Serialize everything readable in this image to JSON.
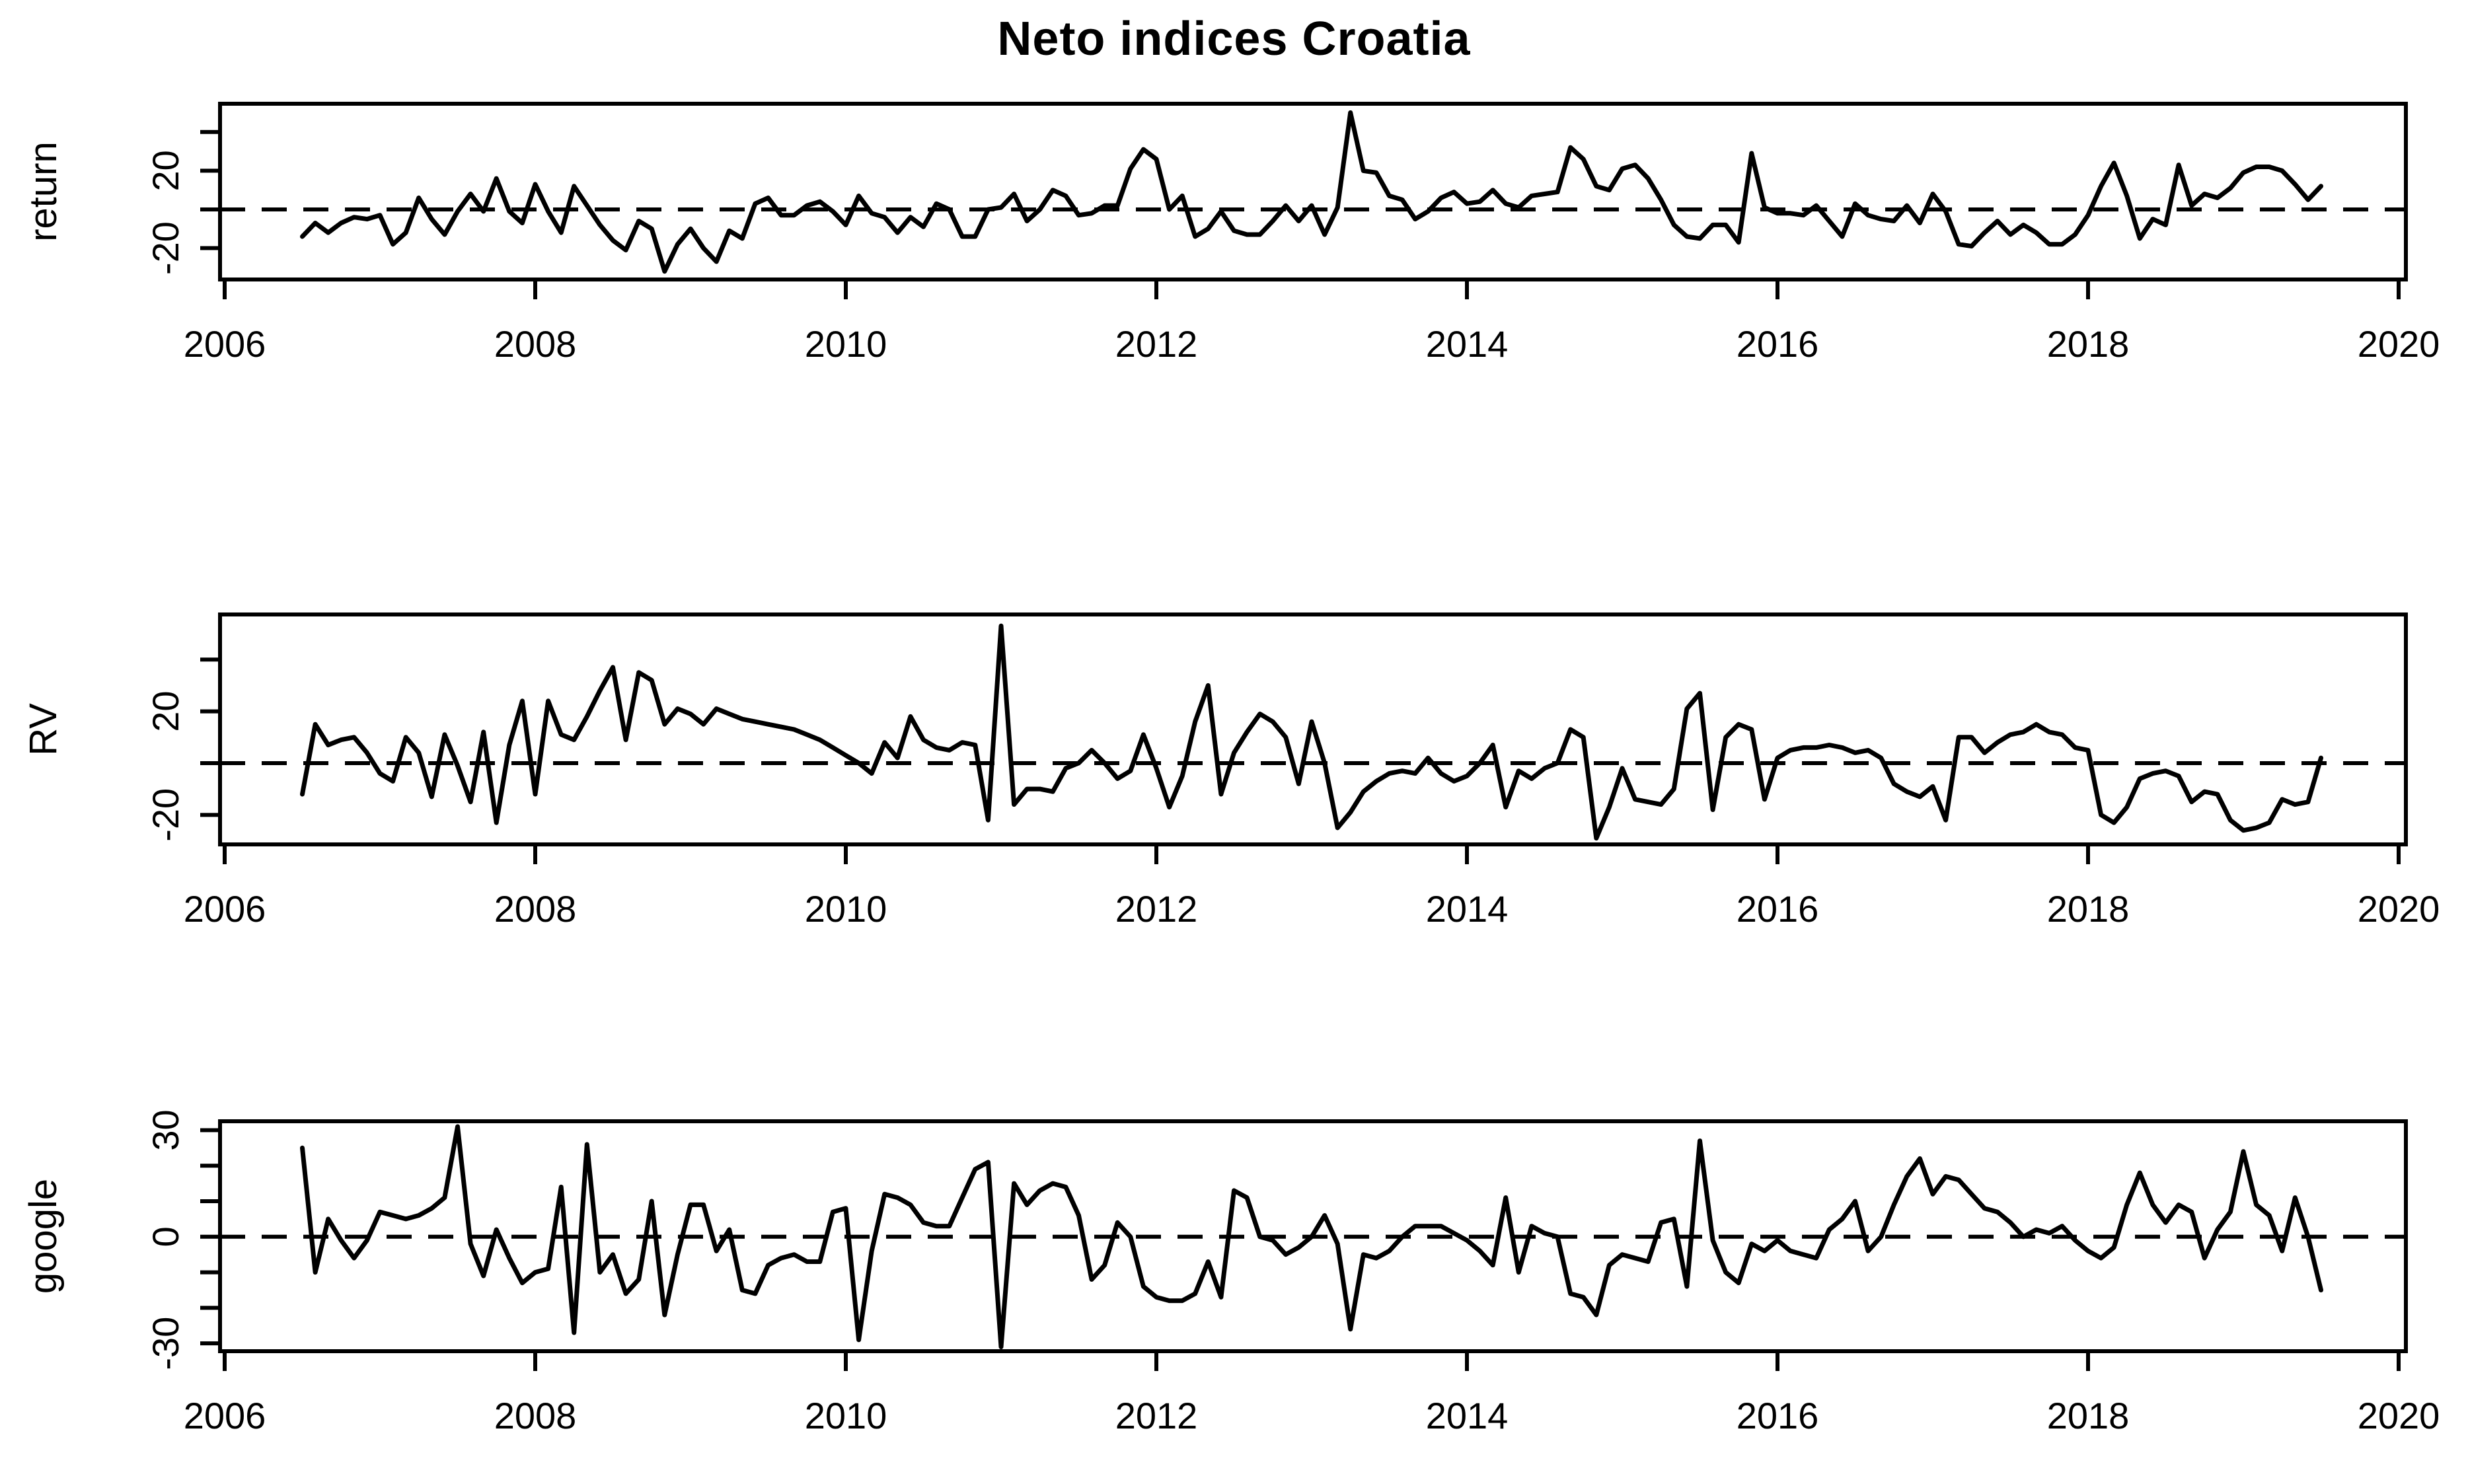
{
  "title": "Neto indices Croatia",
  "chart_data": {
    "type": "line",
    "title": "Neto indices Croatia",
    "x": {
      "start": 2006.5,
      "step_years": 0.0833333,
      "n_points": 157,
      "frequency": "monthly",
      "first_point": "Jul 2006",
      "last_point": "Jul 2019"
    },
    "xticks": [
      2006,
      2008,
      2010,
      2012,
      2014,
      2016,
      2018,
      2020
    ],
    "xtick_labels": [
      "2006",
      "2008",
      "2010",
      "2012",
      "2014",
      "2016",
      "2018",
      "2020"
    ],
    "grid": "off",
    "legend": "none",
    "line_color": "#000000",
    "background": "#ffffff",
    "zero_reference_line": {
      "value": 0,
      "style": "dashed",
      "color": "#000000"
    },
    "panels": [
      {
        "id": "return",
        "ylabel": "return",
        "yticks": [
          40,
          20,
          0,
          -20
        ],
        "ytick_labels": [
          "",
          "20",
          "",
          "-20"
        ],
        "ylim": [
          -36.2,
          54.6
        ],
        "values": [
          -14,
          -7,
          -12,
          -7,
          -4,
          -5,
          -3,
          -18,
          -12,
          6,
          -5,
          -13,
          -1,
          8,
          -1,
          16,
          -1,
          -7,
          13,
          -1,
          -12,
          12,
          2,
          -8,
          -16,
          -21,
          -6,
          -10,
          -32,
          -18,
          -10,
          -20,
          -27,
          -11,
          -15,
          3,
          6,
          -3,
          -3,
          2,
          4,
          -1,
          -8,
          7,
          -2,
          -4,
          -12,
          -4,
          -9,
          3,
          0,
          -14,
          -14,
          0,
          1,
          8,
          -6,
          0,
          10,
          7,
          -3,
          -2,
          2,
          2,
          21,
          31,
          26,
          0,
          7,
          -14,
          -10,
          -1,
          -11,
          -13,
          -13,
          -6,
          2,
          -6,
          2,
          -13,
          1,
          50,
          20,
          19,
          7,
          5,
          -5,
          -1,
          6,
          9,
          3,
          4,
          10,
          3,
          1,
          7,
          8,
          9,
          32,
          26,
          12,
          10,
          21,
          23,
          16,
          5,
          -8,
          -14,
          -15,
          -8,
          -8,
          -17,
          29,
          1,
          -2,
          -2,
          -3,
          2,
          -6,
          -14,
          3,
          -3,
          -5,
          -6,
          2,
          -7,
          8,
          -1,
          -18,
          -19,
          -12,
          -6,
          -13,
          -8,
          -12,
          -18,
          -18,
          -13,
          -3,
          12,
          24,
          7,
          -15,
          -5,
          -8,
          23,
          2,
          8,
          6,
          11,
          19,
          22,
          22,
          20,
          13,
          5,
          12
        ]
      },
      {
        "id": "rv",
        "ylabel": "RV",
        "yticks": [
          40,
          20,
          0,
          -20
        ],
        "ytick_labels": [
          "",
          "20",
          "",
          "-20"
        ],
        "ylim": [
          -31.4,
          57.4
        ],
        "values": [
          -12,
          15,
          7,
          9,
          10,
          4,
          -4,
          -7,
          10,
          4,
          -13,
          11,
          -1,
          -15,
          12,
          -23,
          7,
          24,
          -12,
          24,
          11,
          9,
          18,
          28,
          37,
          9,
          35,
          32,
          15,
          21,
          19,
          15,
          21,
          19,
          17,
          16,
          15,
          14,
          13,
          11,
          9,
          6,
          3,
          0,
          -4,
          8,
          2,
          18,
          9,
          6,
          5,
          8,
          7,
          -22,
          53,
          -16,
          -10,
          -10,
          -11,
          -2,
          0,
          5,
          0,
          -6,
          -3,
          11,
          -2,
          -17,
          -5,
          16,
          30,
          -12,
          4,
          12,
          19,
          16,
          10,
          -8,
          16,
          0,
          -25,
          -19,
          -11,
          -7,
          -4,
          -3,
          -4,
          2,
          -4,
          -7,
          -5,
          0,
          7,
          -17,
          -3,
          -6,
          -2,
          0,
          13,
          10,
          -29,
          -17,
          -2,
          -14,
          -15,
          -16,
          -10,
          21,
          27,
          -18,
          10,
          15,
          13,
          -14,
          2,
          5,
          6,
          6,
          7,
          6,
          4,
          5,
          2,
          -8,
          -11,
          -13,
          -9,
          -22,
          10,
          10,
          4,
          8,
          11,
          12,
          15,
          12,
          11,
          6,
          5,
          -20,
          -23,
          -17,
          -6,
          -4,
          -3,
          -5,
          -15,
          -11,
          -12,
          -22,
          -26,
          -25,
          -23,
          -14,
          -16,
          -15,
          2
        ]
      },
      {
        "id": "google",
        "ylabel": "google",
        "yticks": [
          30,
          20,
          10,
          0,
          -10,
          -20,
          -30
        ],
        "ytick_labels": [
          "30",
          "",
          "",
          "0",
          "",
          "",
          "-30"
        ],
        "ylim": [
          -32.2,
          32.5
        ],
        "values": [
          25,
          -10,
          5,
          -1,
          -6,
          -1,
          7,
          6,
          5,
          6,
          8,
          11,
          31,
          -2,
          -11,
          2,
          -6,
          -13,
          -10,
          -9,
          14,
          -27,
          26,
          -10,
          -5,
          -16,
          -12,
          10,
          -22,
          -5,
          9,
          9,
          -4,
          2,
          -15,
          -16,
          -8,
          -6,
          -5,
          -7,
          -7,
          7,
          8,
          -29,
          -4,
          12,
          11,
          9,
          4,
          3,
          3,
          11,
          19,
          21,
          -31,
          15,
          9,
          13,
          15,
          14,
          6,
          -12,
          -8,
          4,
          0,
          -14,
          -17,
          -18,
          -18,
          -16,
          -7,
          -17,
          13,
          11,
          0,
          -1,
          -5,
          -3,
          0,
          6,
          -2,
          -26,
          -5,
          -6,
          -4,
          0,
          3,
          3,
          3,
          1,
          -1,
          -4,
          -8,
          11,
          -10,
          3,
          1,
          0,
          -16,
          -17,
          -22,
          -8,
          -5,
          -6,
          -7,
          4,
          5,
          -14,
          27,
          -1,
          -10,
          -13,
          -2,
          -4,
          -1,
          -4,
          -5,
          -6,
          2,
          5,
          10,
          -4,
          0,
          9,
          17,
          22,
          12,
          17,
          16,
          12,
          8,
          7,
          4,
          0,
          2,
          1,
          3,
          -1,
          -4,
          -6,
          -3,
          9,
          18,
          9,
          4,
          9,
          7,
          -6,
          2,
          7,
          24,
          9,
          6,
          -4,
          11,
          0,
          -15
        ]
      }
    ]
  }
}
